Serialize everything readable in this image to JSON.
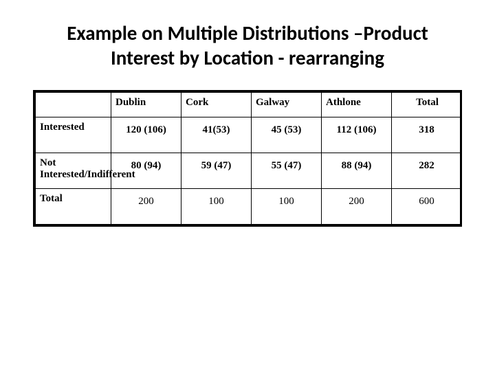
{
  "title": "Example on Multiple Distributions –Product Interest by Location - rearranging",
  "table": {
    "columns": [
      "",
      "Dublin",
      "Cork",
      "Galway",
      "Athlone",
      "Total"
    ],
    "rows": [
      {
        "label": "Interested",
        "cells": [
          "120 (106)",
          "41(53)",
          "45 (53)",
          "112 (106)",
          "318"
        ]
      },
      {
        "label": "Not Interested/Indifferent",
        "cells": [
          "80 (94)",
          "59 (47)",
          "55 (47)",
          "88 (94)",
          "282"
        ]
      },
      {
        "label": "Total",
        "cells": [
          "200",
          "100",
          "100",
          "200",
          "600"
        ],
        "plain": true
      }
    ],
    "border_color": "#000000",
    "background_color": "#ffffff",
    "header_fontweight": "700",
    "body_font": "Times New Roman",
    "title_font": "Calibri",
    "title_fontsize": 29
  }
}
